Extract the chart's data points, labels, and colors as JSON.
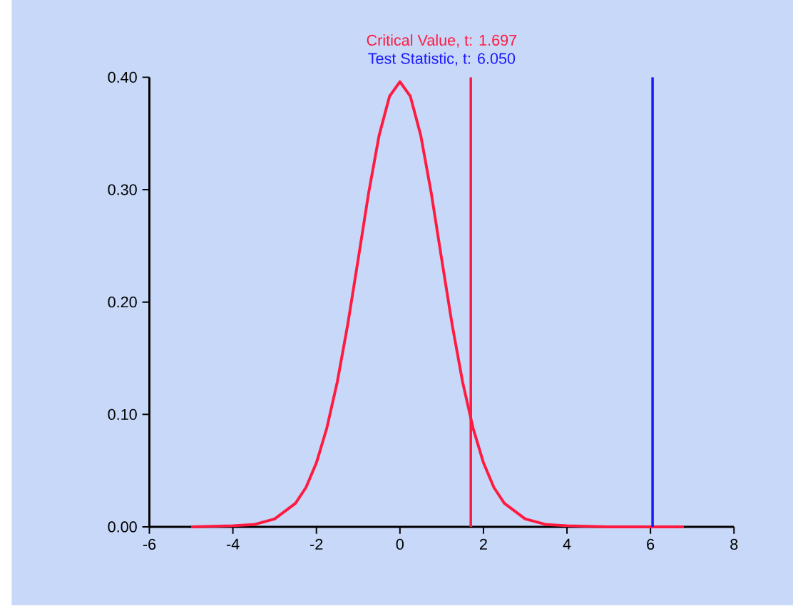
{
  "chart_data": {
    "type": "line",
    "x": [
      -5,
      -4,
      -3.5,
      -3,
      -2.5,
      -2.25,
      -2,
      -1.75,
      -1.5,
      -1.25,
      -1,
      -0.75,
      -0.5,
      -0.25,
      0,
      0.25,
      0.5,
      0.75,
      1,
      1.25,
      1.5,
      1.75,
      2,
      2.25,
      2.5,
      3,
      3.5,
      4,
      5,
      6,
      6.8
    ],
    "series": [
      {
        "color": "#ff1a40",
        "values": [
          0.0,
          0.001,
          0.002,
          0.007,
          0.021,
          0.035,
          0.057,
          0.088,
          0.129,
          0.18,
          0.238,
          0.297,
          0.348,
          0.383,
          0.396,
          0.383,
          0.348,
          0.297,
          0.238,
          0.18,
          0.129,
          0.088,
          0.057,
          0.035,
          0.021,
          0.007,
          0.002,
          0.001,
          0.0,
          0.0,
          0.0
        ]
      }
    ],
    "xlim": [
      -6,
      8
    ],
    "xticks": [
      -6,
      -4,
      -2,
      0,
      2,
      4,
      6,
      8
    ],
    "ylim": [
      0,
      0.4
    ],
    "yticks": [
      {
        "value": 0,
        "label": "0.00"
      },
      {
        "value": 0.1,
        "label": "0.10"
      },
      {
        "value": 0.2,
        "label": "0.20"
      },
      {
        "value": 0.3,
        "label": "0.30"
      },
      {
        "value": 0.4,
        "label": "0.40"
      }
    ],
    "ref_lines": [
      {
        "axis": "x",
        "value": 1.697,
        "label": "Critical Value, t: 1.697",
        "color": "#ff1a40"
      },
      {
        "axis": "x",
        "value": 6.05,
        "label": "Test Statistic, t: 6.050",
        "color": "#1a1aff"
      }
    ],
    "grid": false,
    "marker": "none",
    "line_style": "solid"
  }
}
